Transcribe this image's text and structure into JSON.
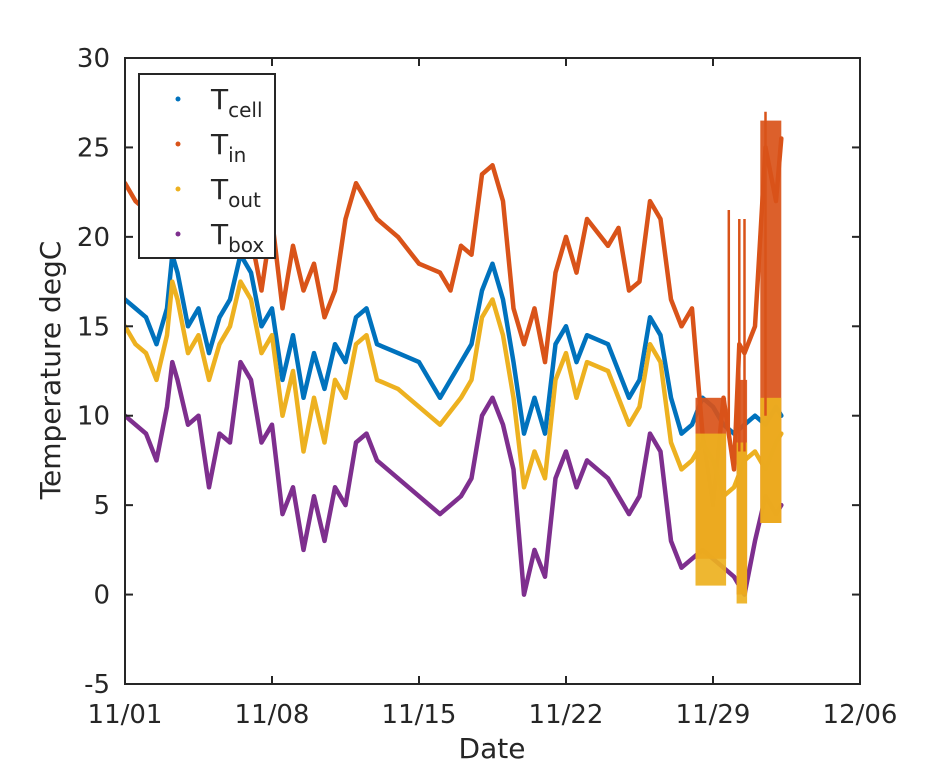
{
  "chart_data": {
    "type": "scatter",
    "xlabel": "Date",
    "ylabel": "Temperature degC",
    "x_dates": [
      "2020-11-01",
      "2020-12-06"
    ],
    "x_ticks": [
      "2020-11-01",
      "2020-11-08",
      "2020-11-15",
      "2020-11-22",
      "2020-11-29",
      "2020-12-06"
    ],
    "x_tick_labels": [
      "11/01",
      "11/08",
      "11/15",
      "11/22",
      "11/29",
      "12/06"
    ],
    "y_ticks": [
      -5,
      0,
      5,
      10,
      15,
      20,
      25,
      30
    ],
    "y_tick_labels": [
      "-5",
      "0",
      "5",
      "10",
      "15",
      "20",
      "25",
      "30"
    ],
    "ylim": [
      -5,
      30
    ],
    "grid": false,
    "legend_position": "top-left",
    "series": [
      {
        "name_main": "T",
        "name_sub": "cell",
        "color": "#0072BD",
        "points": [
          [
            "2020-11-01T00",
            16.5
          ],
          [
            "2020-11-01T12",
            16.0
          ],
          [
            "2020-11-02T00",
            15.5
          ],
          [
            "2020-11-02T12",
            14.0
          ],
          [
            "2020-11-03T00",
            16.0
          ],
          [
            "2020-11-03T06",
            19.0
          ],
          [
            "2020-11-03T12",
            18.0
          ],
          [
            "2020-11-04T00",
            15.0
          ],
          [
            "2020-11-04T12",
            16.0
          ],
          [
            "2020-11-05T00",
            13.5
          ],
          [
            "2020-11-05T12",
            15.5
          ],
          [
            "2020-11-06T00",
            16.5
          ],
          [
            "2020-11-06T12",
            19.0
          ],
          [
            "2020-11-07T00",
            18.0
          ],
          [
            "2020-11-07T12",
            15.0
          ],
          [
            "2020-11-08T00",
            16.0
          ],
          [
            "2020-11-08T12",
            12.0
          ],
          [
            "2020-11-09T00",
            14.5
          ],
          [
            "2020-11-09T12",
            11.0
          ],
          [
            "2020-11-10T00",
            13.5
          ],
          [
            "2020-11-10T12",
            11.5
          ],
          [
            "2020-11-11T00",
            14.0
          ],
          [
            "2020-11-11T12",
            13.0
          ],
          [
            "2020-11-12T00",
            15.5
          ],
          [
            "2020-11-12T12",
            16.0
          ],
          [
            "2020-11-13T00",
            14.0
          ],
          [
            "2020-11-14T00",
            13.5
          ],
          [
            "2020-11-15T00",
            13.0
          ],
          [
            "2020-11-16T00",
            11.0
          ],
          [
            "2020-11-17T00",
            13.0
          ],
          [
            "2020-11-17T12",
            14.0
          ],
          [
            "2020-11-18T00",
            17.0
          ],
          [
            "2020-11-18T12",
            18.5
          ],
          [
            "2020-11-19T00",
            16.5
          ],
          [
            "2020-11-19T12",
            13.0
          ],
          [
            "2020-11-20T00",
            9.0
          ],
          [
            "2020-11-20T12",
            11.0
          ],
          [
            "2020-11-21T00",
            9.0
          ],
          [
            "2020-11-21T12",
            14.0
          ],
          [
            "2020-11-22T00",
            15.0
          ],
          [
            "2020-11-22T12",
            13.0
          ],
          [
            "2020-11-23T00",
            14.5
          ],
          [
            "2020-11-24T00",
            14.0
          ],
          [
            "2020-11-25T00",
            11.0
          ],
          [
            "2020-11-25T12",
            12.0
          ],
          [
            "2020-11-26T00",
            15.5
          ],
          [
            "2020-11-26T12",
            14.5
          ],
          [
            "2020-11-27T00",
            11.0
          ],
          [
            "2020-11-27T12",
            9.0
          ],
          [
            "2020-11-28T00",
            9.5
          ],
          [
            "2020-11-28T12",
            11.0
          ],
          [
            "2020-11-29T00",
            10.5
          ],
          [
            "2020-11-29T12",
            9.5
          ],
          [
            "2020-11-30T00",
            9.0
          ],
          [
            "2020-11-30T12",
            9.5
          ],
          [
            "2020-12-01T00",
            10.0
          ],
          [
            "2020-12-01T12",
            9.5
          ],
          [
            "2020-12-02T00",
            10.5
          ],
          [
            "2020-12-02T06",
            10.0
          ]
        ]
      },
      {
        "name_main": "T",
        "name_sub": "in",
        "color": "#D95319",
        "points": [
          [
            "2020-11-01T00",
            23.0
          ],
          [
            "2020-11-01T12",
            22.0
          ],
          [
            "2020-11-02T00",
            21.5
          ],
          [
            "2020-11-02T12",
            20.0
          ],
          [
            "2020-11-03T00",
            20.0
          ],
          [
            "2020-11-03T12",
            21.5
          ],
          [
            "2020-11-04T00",
            21.0
          ],
          [
            "2020-11-04T12",
            19.5
          ],
          [
            "2020-11-05T00",
            20.0
          ],
          [
            "2020-11-05T12",
            21.0
          ],
          [
            "2020-11-06T00",
            20.0
          ],
          [
            "2020-11-06T12",
            21.5
          ],
          [
            "2020-11-07T00",
            20.0
          ],
          [
            "2020-11-07T12",
            17.0
          ],
          [
            "2020-11-08T00",
            21.0
          ],
          [
            "2020-11-08T12",
            16.0
          ],
          [
            "2020-11-09T00",
            19.5
          ],
          [
            "2020-11-09T12",
            17.0
          ],
          [
            "2020-11-10T00",
            18.5
          ],
          [
            "2020-11-10T12",
            15.5
          ],
          [
            "2020-11-11T00",
            17.0
          ],
          [
            "2020-11-11T12",
            21.0
          ],
          [
            "2020-11-12T00",
            23.0
          ],
          [
            "2020-11-12T12",
            22.0
          ],
          [
            "2020-11-13T00",
            21.0
          ],
          [
            "2020-11-14T00",
            20.0
          ],
          [
            "2020-11-15T00",
            18.5
          ],
          [
            "2020-11-16T00",
            18.0
          ],
          [
            "2020-11-16T12",
            17.0
          ],
          [
            "2020-11-17T00",
            19.5
          ],
          [
            "2020-11-17T12",
            19.0
          ],
          [
            "2020-11-18T00",
            23.5
          ],
          [
            "2020-11-18T12",
            24.0
          ],
          [
            "2020-11-19T00",
            22.0
          ],
          [
            "2020-11-19T12",
            16.0
          ],
          [
            "2020-11-20T00",
            14.0
          ],
          [
            "2020-11-20T12",
            16.0
          ],
          [
            "2020-11-21T00",
            13.0
          ],
          [
            "2020-11-21T12",
            18.0
          ],
          [
            "2020-11-22T00",
            20.0
          ],
          [
            "2020-11-22T12",
            18.0
          ],
          [
            "2020-11-23T00",
            21.0
          ],
          [
            "2020-11-24T00",
            19.5
          ],
          [
            "2020-11-24T12",
            20.5
          ],
          [
            "2020-11-25T00",
            17.0
          ],
          [
            "2020-11-25T12",
            17.5
          ],
          [
            "2020-11-26T00",
            22.0
          ],
          [
            "2020-11-26T12",
            21.0
          ],
          [
            "2020-11-27T00",
            16.5
          ],
          [
            "2020-11-27T12",
            15.0
          ],
          [
            "2020-11-28T00",
            16.0
          ],
          [
            "2020-11-28T12",
            9.0
          ],
          [
            "2020-11-29T00",
            5.0
          ],
          [
            "2020-11-29T12",
            11.0
          ],
          [
            "2020-11-30T00",
            7.0
          ],
          [
            "2020-11-30T06",
            14.0
          ],
          [
            "2020-11-30T12",
            13.5
          ],
          [
            "2020-12-01T00",
            15.0
          ],
          [
            "2020-12-01T06",
            20.0
          ],
          [
            "2020-12-01T12",
            25.0
          ],
          [
            "2020-12-02T00",
            22.0
          ],
          [
            "2020-12-02T06",
            25.5
          ]
        ]
      },
      {
        "name_main": "T",
        "name_sub": "out",
        "color": "#EDB120",
        "points": [
          [
            "2020-11-01T00",
            15.0
          ],
          [
            "2020-11-01T12",
            14.0
          ],
          [
            "2020-11-02T00",
            13.5
          ],
          [
            "2020-11-02T12",
            12.0
          ],
          [
            "2020-11-03T00",
            14.5
          ],
          [
            "2020-11-03T06",
            17.5
          ],
          [
            "2020-11-03T12",
            16.5
          ],
          [
            "2020-11-04T00",
            13.5
          ],
          [
            "2020-11-04T12",
            14.5
          ],
          [
            "2020-11-05T00",
            12.0
          ],
          [
            "2020-11-05T12",
            14.0
          ],
          [
            "2020-11-06T00",
            15.0
          ],
          [
            "2020-11-06T12",
            17.5
          ],
          [
            "2020-11-07T00",
            16.5
          ],
          [
            "2020-11-07T12",
            13.5
          ],
          [
            "2020-11-08T00",
            14.5
          ],
          [
            "2020-11-08T12",
            10.0
          ],
          [
            "2020-11-09T00",
            12.5
          ],
          [
            "2020-11-09T12",
            8.0
          ],
          [
            "2020-11-10T00",
            11.0
          ],
          [
            "2020-11-10T12",
            8.5
          ],
          [
            "2020-11-11T00",
            12.0
          ],
          [
            "2020-11-11T12",
            11.0
          ],
          [
            "2020-11-12T00",
            14.0
          ],
          [
            "2020-11-12T12",
            14.5
          ],
          [
            "2020-11-13T00",
            12.0
          ],
          [
            "2020-11-14T00",
            11.5
          ],
          [
            "2020-11-15T00",
            10.5
          ],
          [
            "2020-11-16T00",
            9.5
          ],
          [
            "2020-11-17T00",
            11.0
          ],
          [
            "2020-11-17T12",
            12.0
          ],
          [
            "2020-11-18T00",
            15.5
          ],
          [
            "2020-11-18T12",
            16.5
          ],
          [
            "2020-11-19T00",
            14.5
          ],
          [
            "2020-11-19T12",
            11.0
          ],
          [
            "2020-11-20T00",
            6.0
          ],
          [
            "2020-11-20T12",
            8.0
          ],
          [
            "2020-11-21T00",
            6.5
          ],
          [
            "2020-11-21T12",
            12.0
          ],
          [
            "2020-11-22T00",
            13.5
          ],
          [
            "2020-11-22T12",
            11.0
          ],
          [
            "2020-11-23T00",
            13.0
          ],
          [
            "2020-11-24T00",
            12.5
          ],
          [
            "2020-11-25T00",
            9.5
          ],
          [
            "2020-11-25T12",
            10.5
          ],
          [
            "2020-11-26T00",
            14.0
          ],
          [
            "2020-11-26T12",
            13.0
          ],
          [
            "2020-11-27T00",
            8.5
          ],
          [
            "2020-11-27T12",
            7.0
          ],
          [
            "2020-11-28T00",
            7.5
          ],
          [
            "2020-11-28T12",
            8.5
          ],
          [
            "2020-11-29T00",
            7.5
          ],
          [
            "2020-11-29T12",
            5.5
          ],
          [
            "2020-11-30T00",
            6.0
          ],
          [
            "2020-11-30T12",
            7.5
          ],
          [
            "2020-12-01T00",
            8.0
          ],
          [
            "2020-12-01T12",
            7.0
          ],
          [
            "2020-12-02T00",
            8.5
          ],
          [
            "2020-12-02T06",
            9.0
          ]
        ]
      },
      {
        "name_main": "T",
        "name_sub": "box",
        "color": "#7E2F8E",
        "points": [
          [
            "2020-11-01T00",
            10.0
          ],
          [
            "2020-11-01T12",
            9.5
          ],
          [
            "2020-11-02T00",
            9.0
          ],
          [
            "2020-11-02T12",
            7.5
          ],
          [
            "2020-11-03T00",
            10.5
          ],
          [
            "2020-11-03T06",
            13.0
          ],
          [
            "2020-11-03T12",
            12.0
          ],
          [
            "2020-11-04T00",
            9.5
          ],
          [
            "2020-11-04T12",
            10.0
          ],
          [
            "2020-11-05T00",
            6.0
          ],
          [
            "2020-11-05T12",
            9.0
          ],
          [
            "2020-11-06T00",
            8.5
          ],
          [
            "2020-11-06T12",
            13.0
          ],
          [
            "2020-11-07T00",
            12.0
          ],
          [
            "2020-11-07T12",
            8.5
          ],
          [
            "2020-11-08T00",
            9.5
          ],
          [
            "2020-11-08T12",
            4.5
          ],
          [
            "2020-11-09T00",
            6.0
          ],
          [
            "2020-11-09T12",
            2.5
          ],
          [
            "2020-11-10T00",
            5.5
          ],
          [
            "2020-11-10T12",
            3.0
          ],
          [
            "2020-11-11T00",
            6.0
          ],
          [
            "2020-11-11T12",
            5.0
          ],
          [
            "2020-11-12T00",
            8.5
          ],
          [
            "2020-11-12T12",
            9.0
          ],
          [
            "2020-11-13T00",
            7.5
          ],
          [
            "2020-11-14T00",
            6.5
          ],
          [
            "2020-11-15T00",
            5.5
          ],
          [
            "2020-11-16T00",
            4.5
          ],
          [
            "2020-11-17T00",
            5.5
          ],
          [
            "2020-11-17T12",
            6.5
          ],
          [
            "2020-11-18T00",
            10.0
          ],
          [
            "2020-11-18T12",
            11.0
          ],
          [
            "2020-11-19T00",
            9.5
          ],
          [
            "2020-11-19T12",
            7.0
          ],
          [
            "2020-11-20T00",
            0.0
          ],
          [
            "2020-11-20T12",
            2.5
          ],
          [
            "2020-11-21T00",
            1.0
          ],
          [
            "2020-11-21T12",
            6.5
          ],
          [
            "2020-11-22T00",
            8.0
          ],
          [
            "2020-11-22T12",
            6.0
          ],
          [
            "2020-11-23T00",
            7.5
          ],
          [
            "2020-11-24T00",
            6.5
          ],
          [
            "2020-11-25T00",
            4.5
          ],
          [
            "2020-11-25T12",
            5.5
          ],
          [
            "2020-11-26T00",
            9.0
          ],
          [
            "2020-11-26T12",
            8.0
          ],
          [
            "2020-11-27T00",
            3.0
          ],
          [
            "2020-11-27T12",
            1.5
          ],
          [
            "2020-11-28T00",
            2.0
          ],
          [
            "2020-11-28T12",
            2.5
          ],
          [
            "2020-11-29T00",
            2.0
          ],
          [
            "2020-11-29T12",
            1.5
          ],
          [
            "2020-11-30T00",
            1.0
          ],
          [
            "2020-11-30T12",
            0.0
          ],
          [
            "2020-12-01T00",
            3.0
          ],
          [
            "2020-12-01T12",
            5.5
          ],
          [
            "2020-12-02T00",
            4.5
          ],
          [
            "2020-12-02T06",
            5.0
          ]
        ]
      }
    ],
    "dense_bands": [
      {
        "series_index": 1,
        "start": "2020-11-28T04",
        "end": "2020-11-29T15",
        "low": 2.0,
        "high": 11.0
      },
      {
        "series_index": 1,
        "start": "2020-11-30T03",
        "end": "2020-11-30T15",
        "low": 0.0,
        "high": 12.0
      },
      {
        "series_index": 1,
        "start": "2020-12-01T06",
        "end": "2020-12-02T06",
        "low": 4.0,
        "high": 26.5
      },
      {
        "series_index": 2,
        "start": "2020-11-28T04",
        "end": "2020-11-29T15",
        "low": 0.5,
        "high": 9.0
      },
      {
        "series_index": 2,
        "start": "2020-11-30T03",
        "end": "2020-11-30T15",
        "low": -0.5,
        "high": 8.5
      },
      {
        "series_index": 2,
        "start": "2020-12-01T06",
        "end": "2020-12-02T06",
        "low": 4.0,
        "high": 11.0
      }
    ],
    "spikes": [
      {
        "series_index": 1,
        "date": "2020-11-29T18",
        "low": 9.0,
        "high": 21.5
      },
      {
        "series_index": 1,
        "date": "2020-11-30T06",
        "low": 8.0,
        "high": 21.0
      },
      {
        "series_index": 1,
        "date": "2020-11-30T12",
        "low": 8.0,
        "high": 21.0
      },
      {
        "series_index": 1,
        "date": "2020-12-01T12",
        "low": 10.0,
        "high": 27.0
      }
    ]
  }
}
